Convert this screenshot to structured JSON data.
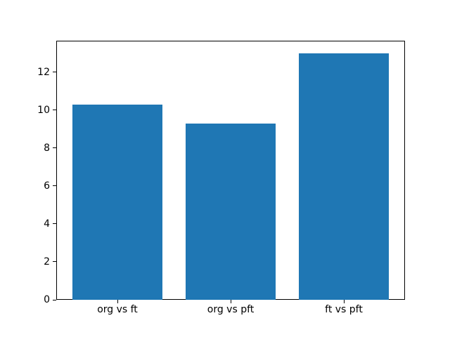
{
  "chart_data": {
    "type": "bar",
    "title": "",
    "xlabel": "",
    "ylabel": "",
    "categories": [
      "org vs ft",
      "org vs pft",
      "ft vs pft"
    ],
    "values": [
      10.3,
      9.3,
      13.0
    ],
    "x_positions": [
      0,
      1,
      2
    ],
    "yticks": [
      0,
      2,
      4,
      6,
      8,
      10,
      12
    ],
    "ylim": [
      0,
      13.65
    ],
    "xlim": [
      -0.54,
      2.54
    ],
    "bar_width_fraction": 0.8,
    "bar_color": "#1f77b4",
    "background_color": "#ffffff",
    "axis_color": "#000000",
    "text_color": "#000000",
    "grid": false,
    "legend": false
  }
}
